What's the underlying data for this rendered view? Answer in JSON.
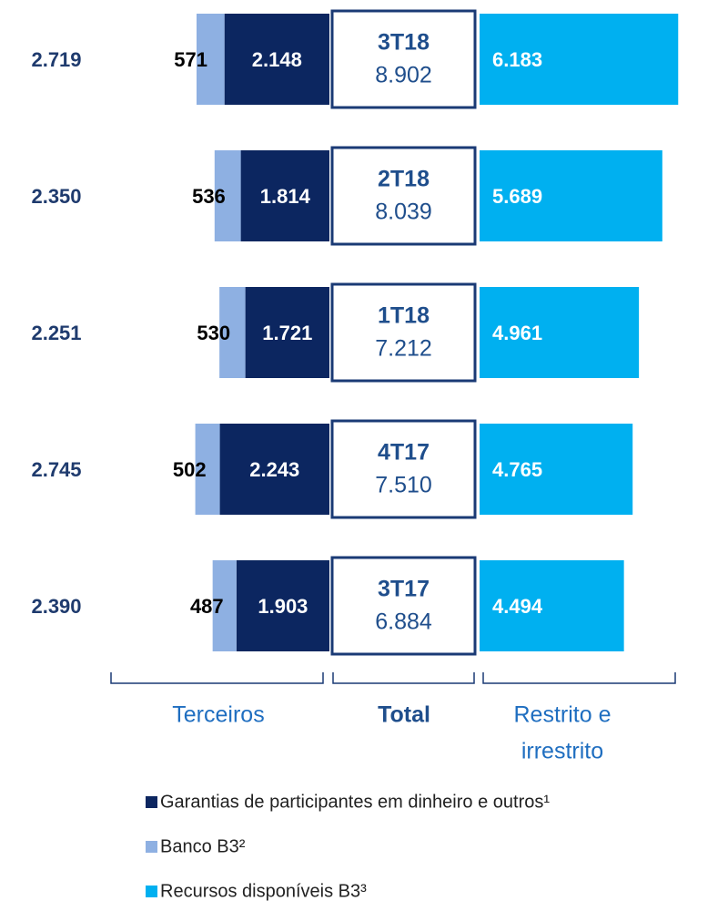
{
  "chart_data": {
    "type": "bar",
    "categories": [
      "3T18",
      "2T18",
      "1T18",
      "4T17",
      "3T17"
    ],
    "totals": [
      8902,
      8039,
      7212,
      7510,
      6884
    ],
    "total_labels": [
      "8.902",
      "8.039",
      "7.212",
      "7.510",
      "6.884"
    ],
    "left_totals": [
      2719,
      2350,
      2251,
      2745,
      2390
    ],
    "left_total_labels": [
      "2.719",
      "2.350",
      "2.251",
      "2.745",
      "2.390"
    ],
    "series": [
      {
        "name": "Garantias de participantes em dinheiro e outros¹",
        "color": "#0c2660",
        "side": "left",
        "values": [
          2148,
          1814,
          1721,
          2243,
          1903
        ],
        "value_labels": [
          "2.148",
          "1.814",
          "1.721",
          "2.243",
          "1.903"
        ]
      },
      {
        "name": "Banco B3²",
        "color": "#8eb0e2",
        "side": "left",
        "values": [
          571,
          536,
          530,
          502,
          487
        ]
      },
      {
        "name": "Recursos disponíveis B3³",
        "color": "#00b0f0",
        "side": "right",
        "values": [
          6183,
          5689,
          4961,
          4765,
          4494
        ],
        "value_labels": [
          "6.183",
          "5.689",
          "4.961",
          "4.765",
          "4.494"
        ]
      }
    ],
    "group_labels": {
      "left": "Terceiros",
      "center": "Total",
      "right": [
        "Restrito e",
        "irrestrito"
      ]
    }
  }
}
